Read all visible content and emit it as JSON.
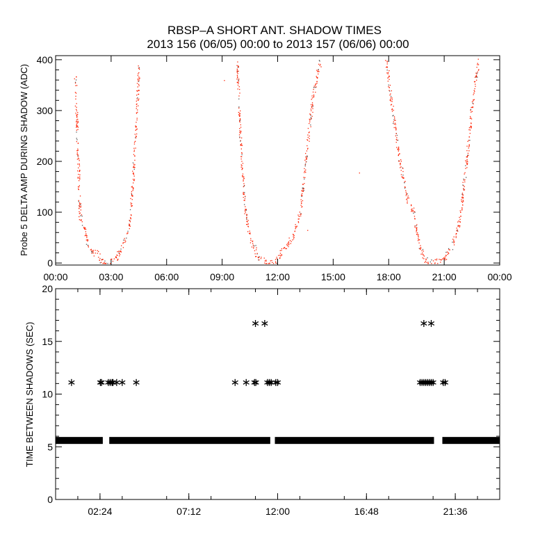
{
  "title": "RBSP–A SHORT ANT. SHADOW TIMES",
  "subtitle": "2013 156 (06/05) 00:00 to 2013 157 (06/06) 00:00",
  "chart_data": [
    {
      "type": "scatter",
      "ylabel": "Probe 5 DELTA AMP DURING SHADOW (ADC)",
      "xlabel": "",
      "xlim": [
        0,
        24
      ],
      "ylim": [
        -4,
        408
      ],
      "xticks": [
        0,
        3,
        6,
        9,
        12,
        15,
        18,
        21,
        24
      ],
      "xtick_labels": [
        "00:00",
        "03:00",
        "06:00",
        "09:00",
        "12:00",
        "15:00",
        "18:00",
        "21:00",
        "00:00"
      ],
      "yticks": [
        0,
        100,
        200,
        300,
        400
      ],
      "ytick_labels": [
        "0",
        "100",
        "200",
        "300",
        "400"
      ],
      "color": "#ff2000",
      "passes": [
        [
          [
            1.05,
            370
          ],
          [
            1.15,
            260
          ],
          [
            1.25,
            160
          ],
          [
            1.3,
            95
          ],
          [
            1.45,
            80
          ],
          [
            1.6,
            60
          ],
          [
            1.75,
            28
          ],
          [
            2.0,
            22
          ],
          [
            2.25,
            18
          ],
          [
            2.45,
            5
          ],
          [
            2.65,
            0
          ],
          [
            3.1,
            2
          ],
          [
            3.4,
            18
          ],
          [
            3.75,
            50
          ],
          [
            4.0,
            80
          ],
          [
            4.15,
            150
          ],
          [
            4.3,
            250
          ],
          [
            4.5,
            390
          ]
        ],
        [
          [
            9.8,
            400
          ],
          [
            9.95,
            260
          ],
          [
            10.2,
            110
          ],
          [
            10.5,
            50
          ],
          [
            10.95,
            10
          ],
          [
            11.45,
            0
          ],
          [
            11.9,
            2
          ],
          [
            12.2,
            25
          ],
          [
            12.8,
            50
          ],
          [
            13.2,
            100
          ],
          [
            13.5,
            200
          ],
          [
            13.9,
            330
          ],
          [
            14.3,
            400
          ]
        ],
        [
          [
            17.85,
            400
          ],
          [
            18.2,
            300
          ],
          [
            18.6,
            200
          ],
          [
            19.0,
            125
          ],
          [
            19.35,
            100
          ],
          [
            19.55,
            50
          ],
          [
            19.9,
            10
          ],
          [
            20.2,
            0
          ],
          [
            20.85,
            5
          ],
          [
            21.4,
            30
          ],
          [
            21.8,
            80
          ],
          [
            22.2,
            200
          ],
          [
            22.55,
            330
          ],
          [
            22.85,
            400
          ]
        ]
      ],
      "outliers": [
        [
          9.1,
          360
        ],
        [
          16.4,
          178
        ],
        [
          13.6,
          65
        ]
      ]
    },
    {
      "type": "scatter",
      "ylabel": "TIME BETWEEN SHADOWS (SEC)",
      "xlim": [
        0,
        24
      ],
      "ylim": [
        0,
        20
      ],
      "xticks": [
        2.4,
        7.2,
        12.0,
        16.8,
        21.6
      ],
      "xtick_labels": [
        "02:24",
        "07:12",
        "12:00",
        "16:48",
        "21:36"
      ],
      "yticks": [
        0,
        5,
        10,
        15,
        20
      ],
      "ytick_labels": [
        "0",
        "5",
        "10",
        "15",
        "20"
      ],
      "baseline_value": 5.6,
      "baseline_segments": [
        [
          0,
          2.55
        ],
        [
          2.9,
          11.6
        ],
        [
          11.85,
          20.45
        ],
        [
          20.9,
          24
        ]
      ],
      "points_11": [
        0.86,
        2.42,
        2.48,
        2.85,
        2.95,
        3.05,
        3.1,
        3.3,
        3.6,
        4.36,
        9.7,
        10.3,
        10.75,
        10.82,
        11.45,
        11.55,
        11.65,
        11.9,
        12.0,
        19.7,
        19.8,
        19.9,
        20.0,
        20.1,
        20.2,
        20.3,
        20.4,
        20.95,
        21.05
      ],
      "value_11": 11.1,
      "points_17": [
        10.8,
        11.3,
        19.9,
        20.3
      ],
      "value_17": 16.7
    }
  ]
}
